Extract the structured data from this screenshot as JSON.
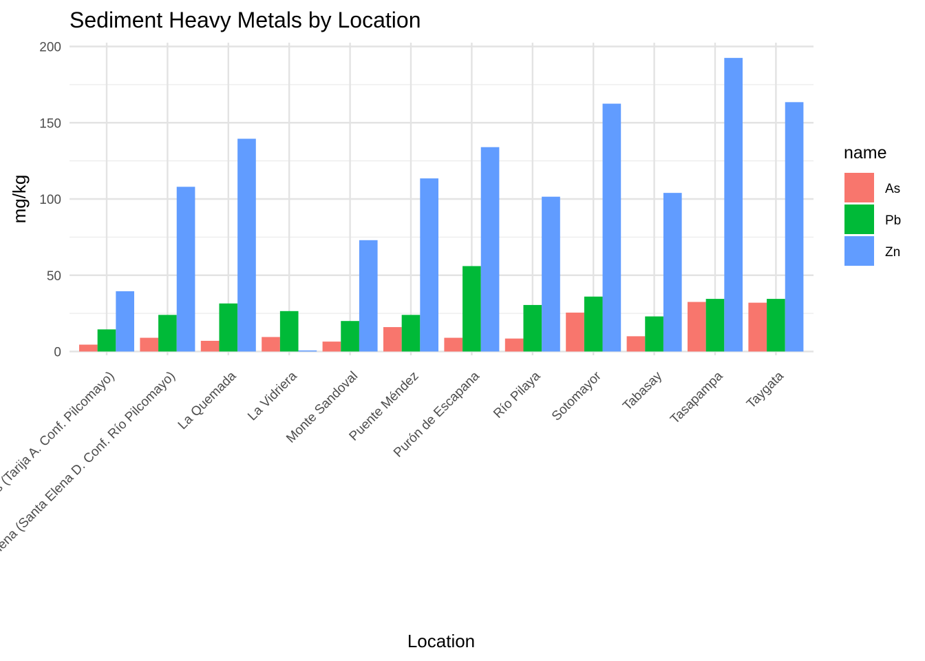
{
  "chart_data": {
    "type": "bar",
    "title": "Sediment Heavy Metals by Location",
    "xlabel": "Location",
    "ylabel": "mg/kg",
    "ylim": [
      0,
      200
    ],
    "yticks": [
      0,
      50,
      100,
      150,
      200
    ],
    "grid": true,
    "legend_position": "right",
    "legend_title": "name",
    "categories": [
      "Villa Montes (Tarija A. Conf. Pilcomayo)",
      "Santa Elena (Santa Elena D. Conf. Río Pilcomayo)",
      "La Quemada",
      "La Vidriera",
      "Monte Sandoval",
      "Puente Méndez",
      "Purón de Escapana",
      "Río Pilaya",
      "Sotomayor",
      "Tabasay",
      "Tasapampa",
      "Taygata"
    ],
    "series": [
      {
        "name": "As",
        "color": "#F8766D",
        "values": [
          4.5,
          9,
          7,
          9.5,
          6.5,
          16,
          9,
          8.5,
          25.5,
          10,
          32.5,
          32
        ]
      },
      {
        "name": "Pb",
        "color": "#00BA38",
        "values": [
          14.5,
          24,
          31.5,
          26.5,
          20,
          24,
          56,
          30.5,
          36,
          23,
          34.5,
          34.5
        ]
      },
      {
        "name": "Zn",
        "color": "#619CFF",
        "values": [
          39.5,
          108,
          139.5,
          0.7,
          73,
          113.5,
          134,
          101.5,
          162.5,
          104,
          192.5,
          163.5
        ]
      }
    ]
  }
}
